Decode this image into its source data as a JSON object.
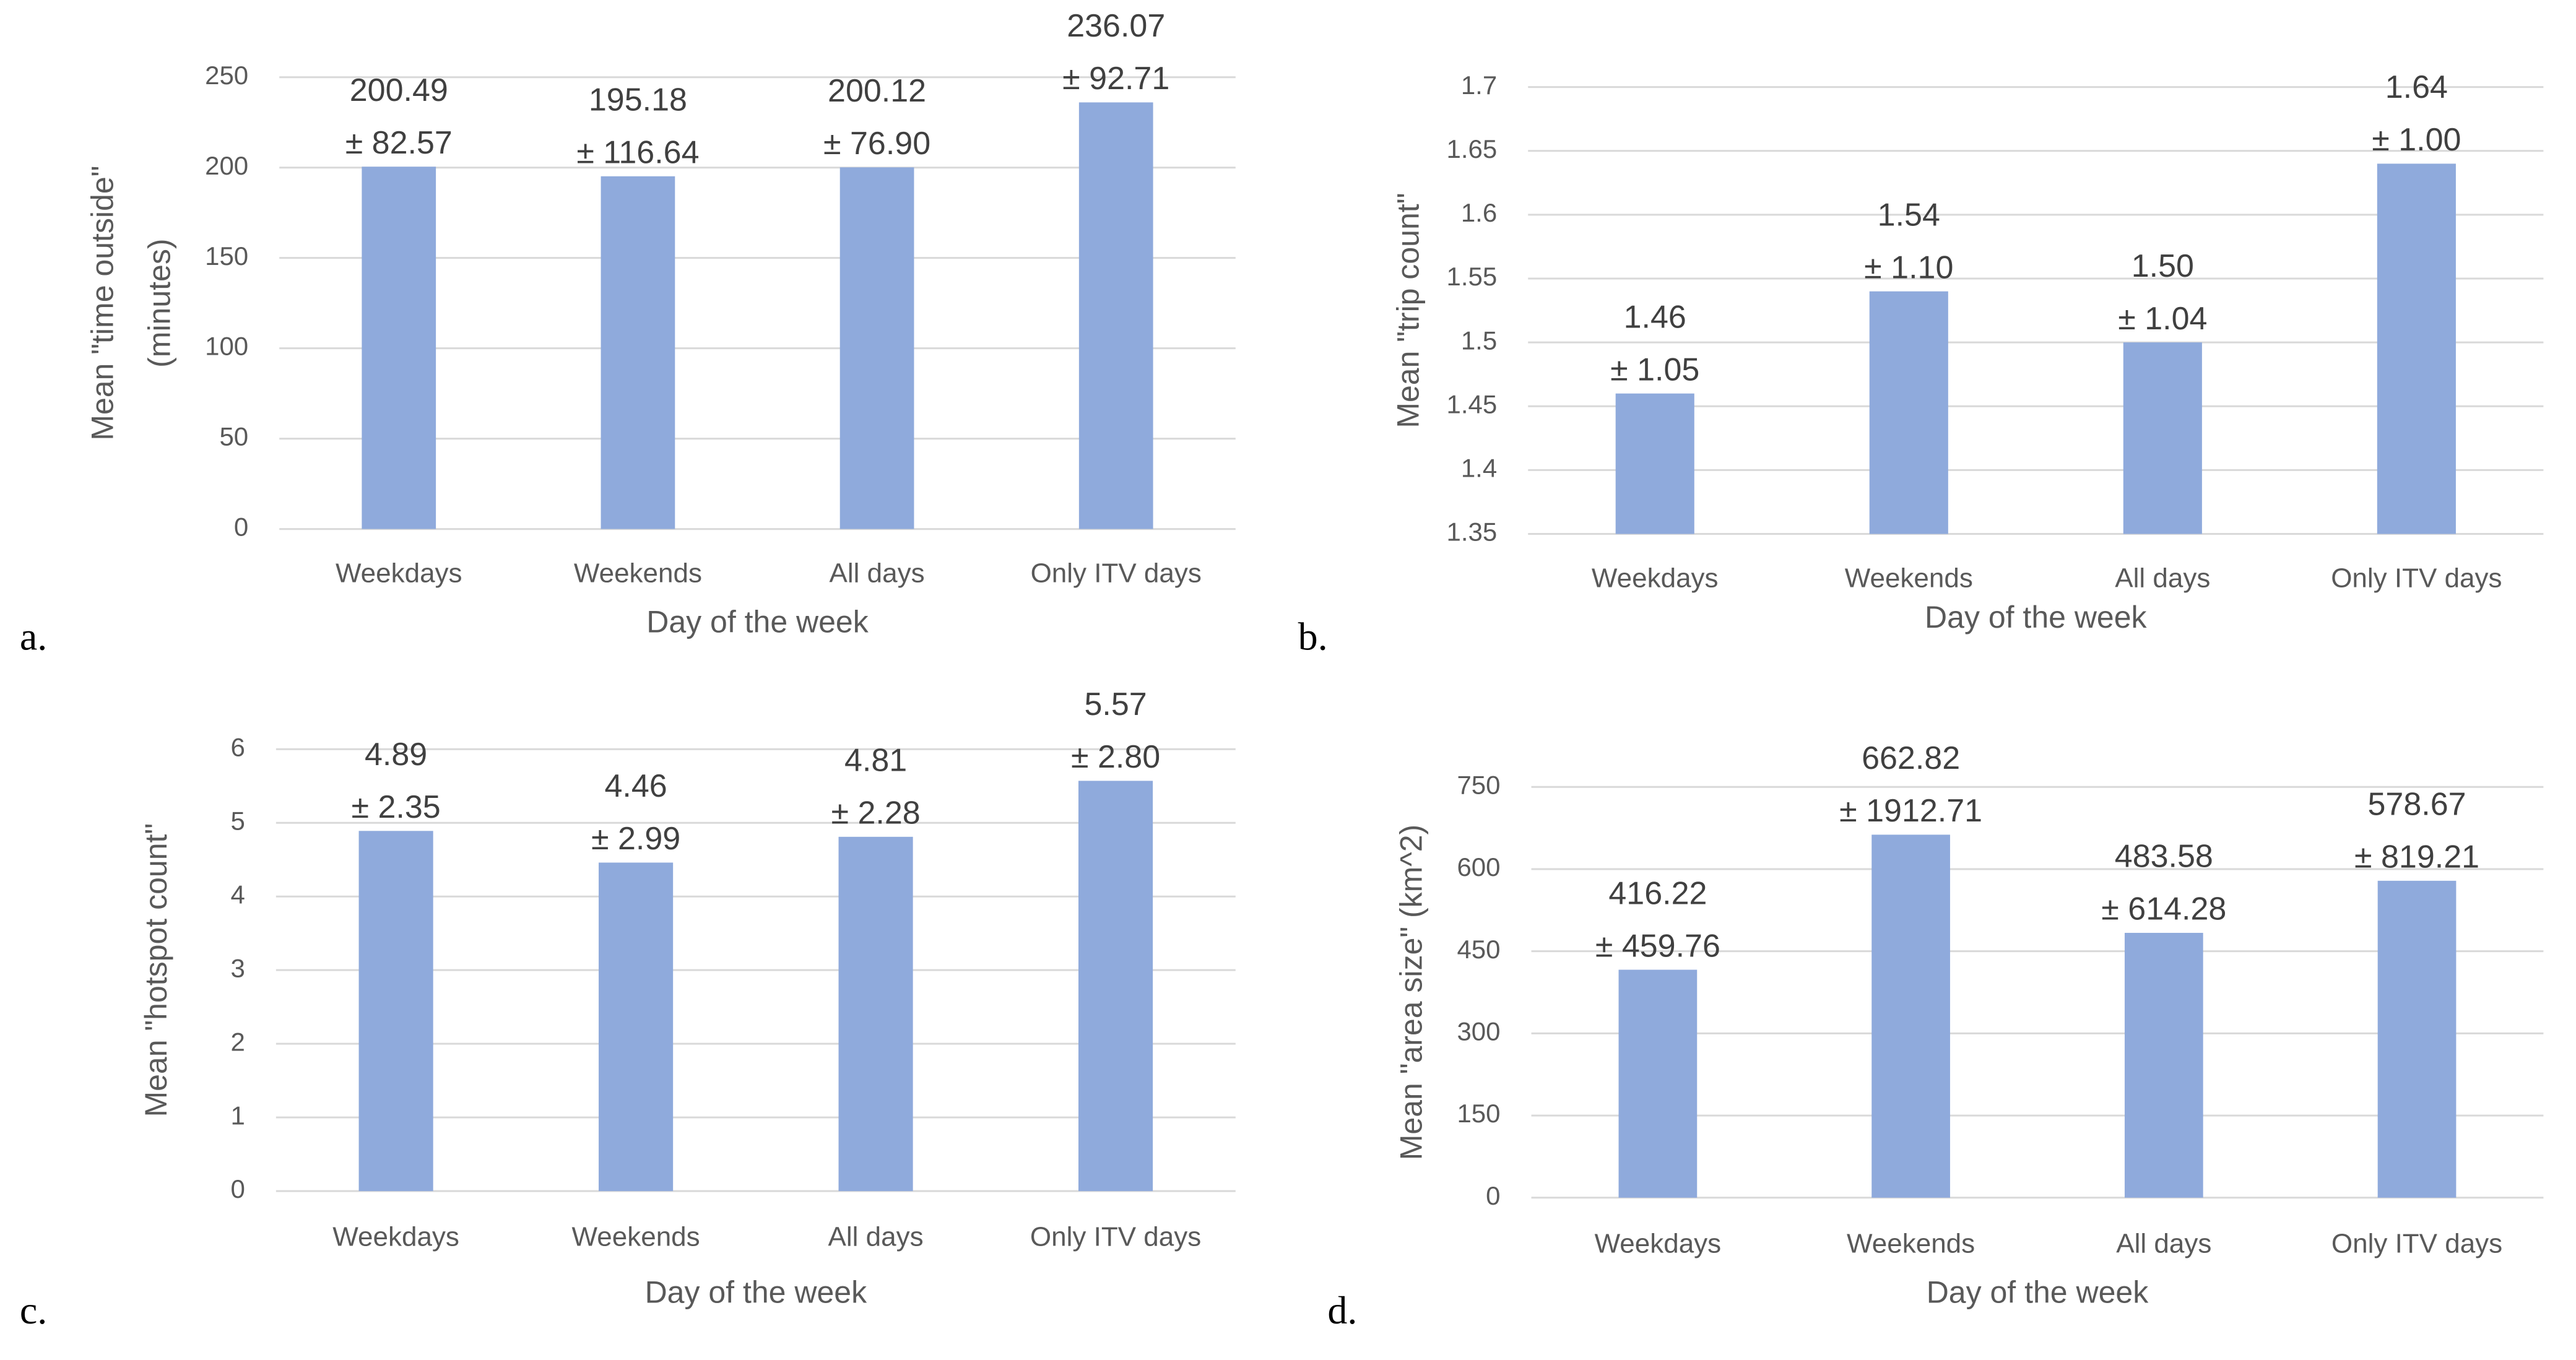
{
  "chart_data": [
    {
      "type": "bar",
      "label": "a.",
      "xlabel": "Day of the week",
      "ylabel": [
        "Mean \"time outside\"",
        "(minutes)"
      ],
      "categories": [
        "Weekdays",
        "Weekends",
        "All days",
        "Only ITV days"
      ],
      "values": [
        200.49,
        195.18,
        200.12,
        236.07
      ],
      "value_labels": [
        "200.49",
        "195.18",
        "200.12",
        "236.07"
      ],
      "error_labels": [
        "± 82.57",
        "± 116.64",
        "± 76.90",
        "± 92.71"
      ],
      "color": "#8faadc",
      "ylim": [
        0,
        250
      ],
      "yticks": [
        0,
        50,
        100,
        150,
        200,
        250
      ],
      "grid": true
    },
    {
      "type": "bar",
      "label": "b.",
      "xlabel": "Day of the week",
      "ylabel": [
        "Mean \"trip count\""
      ],
      "categories": [
        "Weekdays",
        "Weekends",
        "All days",
        "Only ITV days"
      ],
      "values": [
        1.46,
        1.54,
        1.5,
        1.64
      ],
      "value_labels": [
        "1.46",
        "1.54",
        "1.50",
        "1.64"
      ],
      "error_labels": [
        "± 1.05",
        "± 1.10",
        "± 1.04",
        "± 1.00"
      ],
      "color": "#8faadc",
      "ylim": [
        1.35,
        1.7
      ],
      "yticks": [
        1.35,
        1.4,
        1.45,
        1.5,
        1.55,
        1.6,
        1.65,
        1.7
      ],
      "grid": true
    },
    {
      "type": "bar",
      "label": "c.",
      "xlabel": "Day of the week",
      "ylabel": [
        "Mean \"hotspot count\""
      ],
      "categories": [
        "Weekdays",
        "Weekends",
        "All days",
        "Only ITV days"
      ],
      "values": [
        4.89,
        4.46,
        4.81,
        5.57
      ],
      "value_labels": [
        "4.89",
        "4.46",
        "4.81",
        "5.57"
      ],
      "error_labels": [
        "± 2.35",
        "± 2.99",
        "± 2.28",
        "± 2.80"
      ],
      "color": "#8faadc",
      "ylim": [
        0,
        6
      ],
      "yticks": [
        0,
        1,
        2,
        3,
        4,
        5,
        6
      ],
      "grid": true
    },
    {
      "type": "bar",
      "label": "d.",
      "xlabel": "Day of the week",
      "ylabel": [
        "Mean \"area size\" (km^2)"
      ],
      "categories": [
        "Weekdays",
        "Weekends",
        "All days",
        "Only ITV days"
      ],
      "values": [
        416.22,
        662.82,
        483.58,
        578.67
      ],
      "value_labels": [
        "416.22",
        "662.82",
        "483.58",
        "578.67"
      ],
      "error_labels": [
        "± 459.76",
        "± 1912.71",
        "± 614.28",
        "± 819.21"
      ],
      "color": "#8faadc",
      "ylim": [
        0,
        750
      ],
      "yticks": [
        0,
        150,
        300,
        450,
        600,
        750
      ],
      "grid": true
    }
  ]
}
